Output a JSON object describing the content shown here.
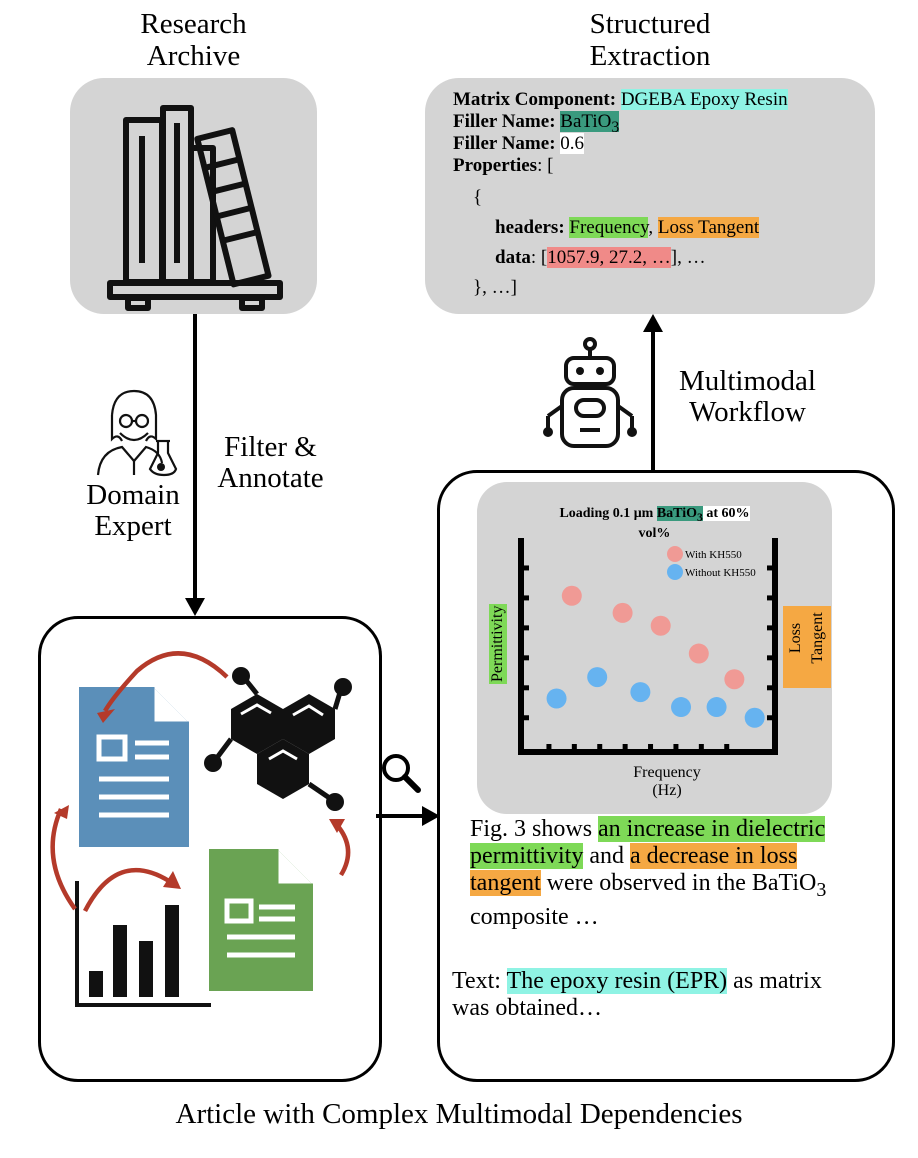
{
  "archive": {
    "title_line1": "Research",
    "title_line2": "Archive"
  },
  "extraction": {
    "title_line1": "Structured",
    "title_line2": "Extraction",
    "matrix_key": "Matrix Component",
    "matrix_value": "DGEBA Epoxy Resin",
    "filler_key": "Filler Name",
    "filler_value": "BaTiO",
    "filler_value_sub": "3",
    "filler2_key": "Filler Name",
    "filler2_value": "0.6",
    "properties_key": "Properties",
    "properties_open": ": [",
    "brace_open": "{",
    "headers_key": "headers",
    "header1": "Frequency",
    "header2": "Loss Tangent",
    "data_key": "data",
    "data_value": "1057.9, 27.2, …",
    "data_tail": "], …",
    "brace_close": "}, …]"
  },
  "left_flow": {
    "label_line1": "Filter &",
    "label_line2": "Annotate",
    "expert_line1": "Domain",
    "expert_line2": "Expert"
  },
  "right_flow": {
    "label_line1": "Multimodal",
    "label_line2": "Workflow"
  },
  "figure_text": {
    "p1_a": "Fig. 3 shows ",
    "p1_hl1": "an increase in dielectric permittivity",
    "p1_b": " and ",
    "p1_hl2": "a decrease in loss tangent",
    "p1_c": " were observed in the BaTiO",
    "p1_sub": "3",
    "p1_d": " composite …",
    "p2_label": "Text: ",
    "p2_hl": "The epoxy resin (EPR)",
    "p2_rest": " as matrix was obtained…"
  },
  "caption": "Article with Complex Multimodal Dependencies",
  "chart_data": {
    "type": "scatter",
    "title_pre": "Loading 0.1 μm ",
    "title_hl": "BaTiO",
    "title_sub": "3",
    "title_post": " at 60%",
    "title_line2": "vol%",
    "xlabel_line1": "Frequency",
    "xlabel_line2": "(Hz)",
    "ylabel_left": "Permittivity",
    "ylabel_right_line1": "Loss",
    "ylabel_right_line2": "Tangent",
    "legend_position": "top-right",
    "x": [
      1,
      2,
      3,
      4,
      5,
      6,
      7,
      8
    ],
    "series": [
      {
        "name": "With KH550",
        "color": "#f09a95",
        "points": [
          [
            2,
            7.3
          ],
          [
            4,
            6.5
          ],
          [
            5.5,
            5.9
          ],
          [
            7,
            4.6
          ],
          [
            8.4,
            3.4
          ]
        ]
      },
      {
        "name": "Without KH550",
        "color": "#66b3f0",
        "points": [
          [
            1.4,
            2.5
          ],
          [
            3,
            3.5
          ],
          [
            4.7,
            2.8
          ],
          [
            6.3,
            2.1
          ],
          [
            7.7,
            2.1
          ],
          [
            9.2,
            1.6
          ]
        ]
      }
    ],
    "xlim": [
      0,
      10
    ],
    "ylim": [
      0,
      10
    ]
  },
  "colors": {
    "cyan": "#8ff3e4",
    "teal": "#3a9a7e",
    "green": "#7ed957",
    "orange": "#f5a843",
    "red": "#f08a88",
    "panel": "#d4d4d4"
  }
}
